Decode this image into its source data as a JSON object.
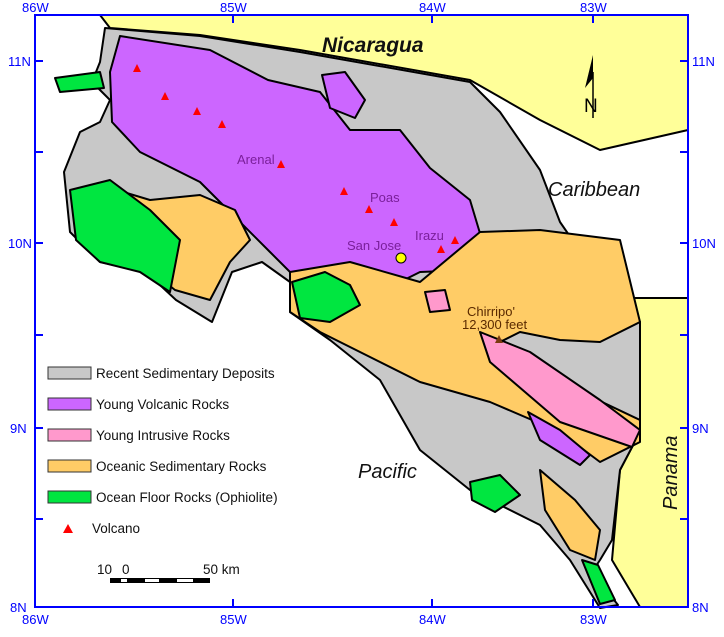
{
  "map": {
    "country_labels": {
      "north": "Nicaragua",
      "east_sea": "Caribbean",
      "west_sea": "Pacific",
      "southeast": "Panama"
    },
    "north_arrow_label": "N",
    "axis": {
      "longitude_ticks": [
        "86W",
        "85W",
        "84W",
        "83W"
      ],
      "latitude_ticks": [
        "11N",
        "10N",
        "9N",
        "8N"
      ]
    },
    "places": {
      "arenal": "Arenal",
      "poas": "Poas",
      "irazu": "Irazu",
      "san_jose": "San Jose",
      "chirripo": "Chirripo'",
      "chirripo_elev": "12,300 feet"
    },
    "colors": {
      "recent_sedimentary": "#c8c8c8",
      "young_volcanic": "#cc66ff",
      "young_intrusive": "#ff99cc",
      "oceanic_sedimentary": "#ffcc66",
      "ophiolite": "#00e640",
      "neighbor_land": "#ffff99",
      "volcano": "#ff0000",
      "frame": "#0000ff"
    }
  },
  "legend": {
    "items": [
      {
        "label": "Recent Sedimentary Deposits",
        "color": "#c8c8c8"
      },
      {
        "label": "Young Volcanic Rocks",
        "color": "#cc66ff"
      },
      {
        "label": "Young Intrusive Rocks",
        "color": "#ff99cc"
      },
      {
        "label": "Oceanic Sedimentary Rocks",
        "color": "#ffcc66"
      },
      {
        "label": "Ocean Floor Rocks (Ophiolite)",
        "color": "#00e640"
      }
    ],
    "volcano_label": "Volcano"
  },
  "scale_bar": {
    "left_label": "10",
    "zero_label": "0",
    "right_label": "50 km"
  }
}
